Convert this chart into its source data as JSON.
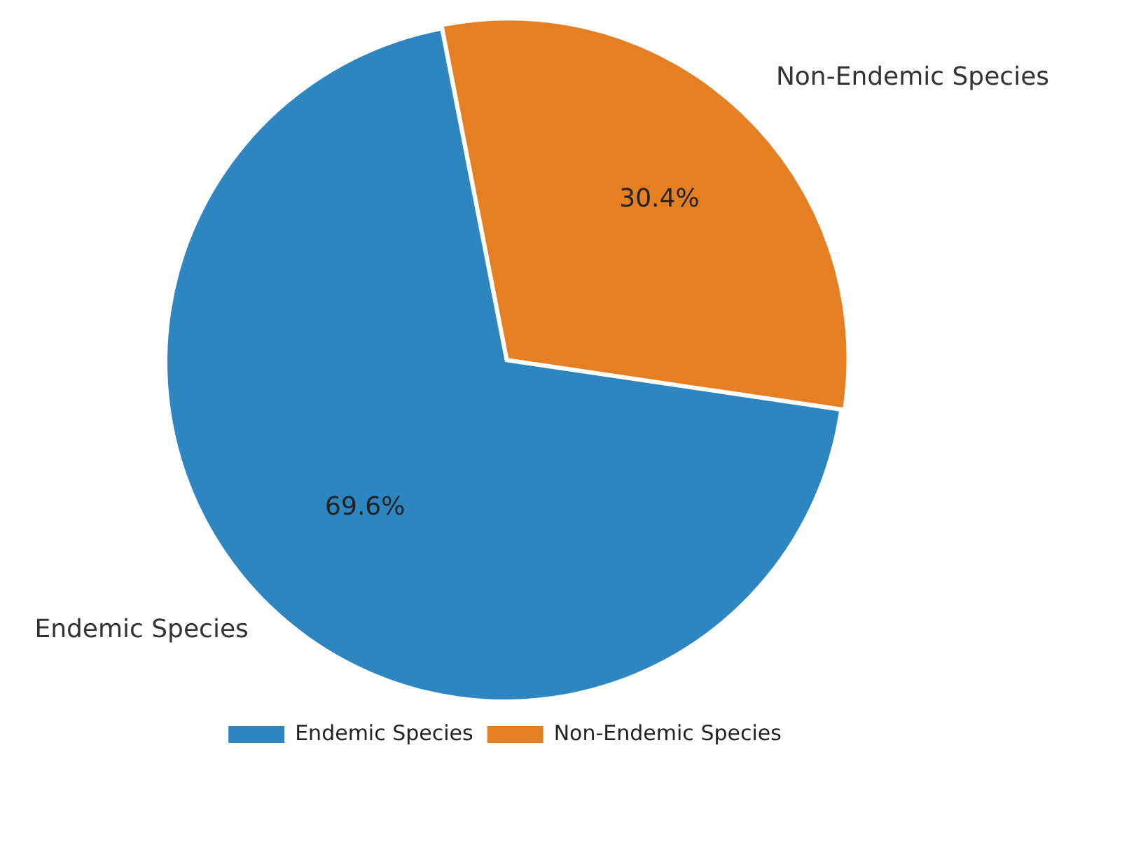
{
  "chart_data": {
    "type": "pie",
    "categories": [
      "Endemic Species",
      "Non-Endemic Species"
    ],
    "values": [
      69.6,
      30.4
    ],
    "colors": [
      "#2e86c1",
      "#e67e22"
    ],
    "value_labels": [
      "69.6%",
      "30.4%"
    ],
    "legend": "bottom"
  }
}
